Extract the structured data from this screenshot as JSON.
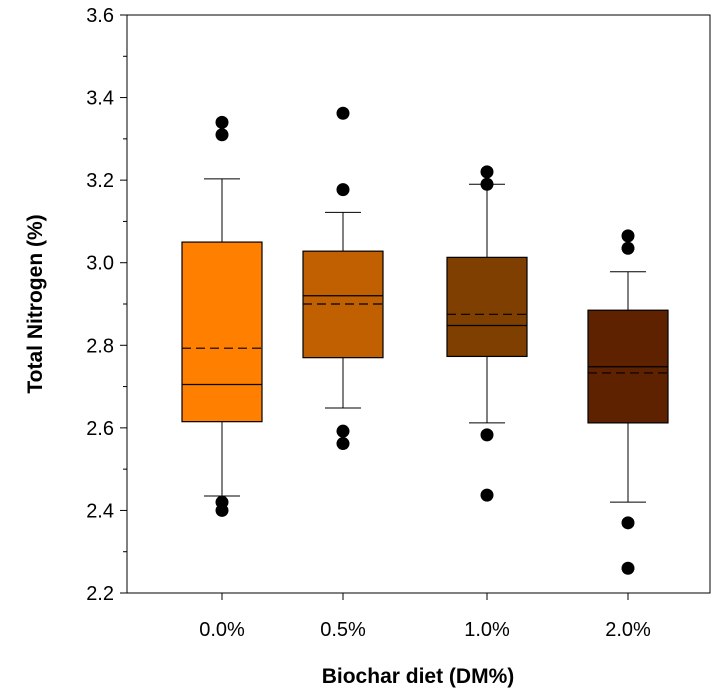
{
  "chart_data": {
    "type": "box",
    "xlabel": "Biochar diet (DM%)",
    "ylabel": "Total Nitrogen (%)",
    "categories": [
      "0.0%",
      "0.5%",
      "1.0%",
      "2.0%"
    ],
    "ylim": [
      2.2,
      3.6
    ],
    "yticks": [
      "2.2",
      "2.4",
      "2.6",
      "2.8",
      "3.0",
      "3.2",
      "3.4",
      "3.6"
    ],
    "ytick_values": [
      2.2,
      2.4,
      2.6,
      2.8,
      3.0,
      3.2,
      3.4,
      3.6
    ],
    "grid": false,
    "legend": "none",
    "series": [
      {
        "category": "0.0%",
        "color": "#ff8000",
        "whisker_low": 2.435,
        "q1": 2.615,
        "median": 2.705,
        "mean": 2.793,
        "q3": 3.05,
        "whisker_high": 3.203,
        "outliers": [
          2.42,
          2.4,
          3.31,
          3.34
        ]
      },
      {
        "category": "0.5%",
        "color": "#c06000",
        "whisker_low": 2.648,
        "q1": 2.77,
        "median": 2.92,
        "mean": 2.9,
        "q3": 3.028,
        "whisker_high": 3.122,
        "outliers": [
          2.592,
          2.562,
          3.177,
          3.362
        ]
      },
      {
        "category": "1.0%",
        "color": "#7f3f00",
        "whisker_low": 2.612,
        "q1": 2.773,
        "median": 2.848,
        "mean": 2.875,
        "q3": 3.013,
        "whisker_high": 3.19,
        "outliers": [
          2.583,
          2.437,
          3.19,
          3.22
        ]
      },
      {
        "category": "2.0%",
        "color": "#5f2200",
        "whisker_low": 2.42,
        "q1": 2.612,
        "median": 2.748,
        "mean": 2.733,
        "q3": 2.885,
        "whisker_high": 2.978,
        "outliers": [
          2.37,
          2.26,
          3.035,
          3.065
        ]
      }
    ]
  }
}
